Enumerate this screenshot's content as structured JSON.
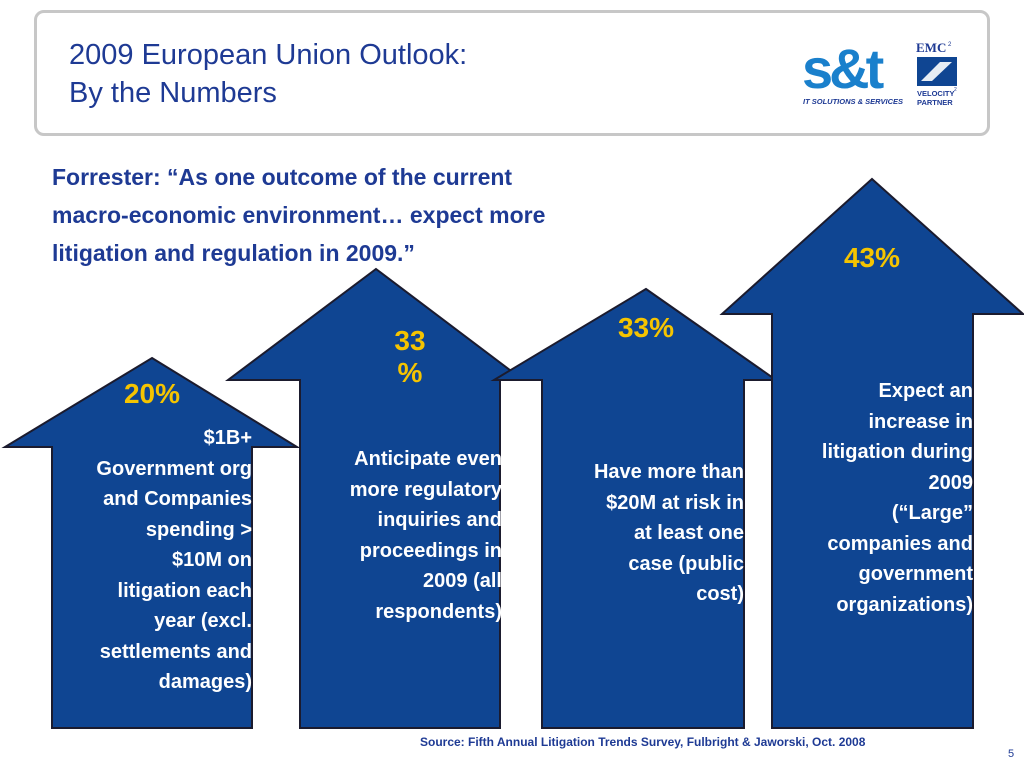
{
  "slide": {
    "title_line1": "2009 European Union Outlook:",
    "title_line2": "By the Numbers",
    "quote_lines": [
      "Forrester:  “As one outcome of the current",
      "macro-economic environment… expect more",
      "litigation and regulation in 2009.”"
    ],
    "arrows": [
      {
        "percent_lines": [
          "20%"
        ],
        "description_lines": [
          "$1B+",
          "Government org",
          "and Companies",
          "spending >",
          "$10M on",
          "litigation each",
          "year (excl.",
          "settlements and",
          "damages)"
        ]
      },
      {
        "percent_lines": [
          "33",
          "%"
        ],
        "description_lines": [
          "Anticipate  even",
          "more regulatory",
          "inquiries and",
          "proceedings in",
          "2009 (all",
          "respondents)"
        ]
      },
      {
        "percent_lines": [
          "33%"
        ],
        "description_lines": [
          "Have more than",
          "$20M at risk in",
          "at least one",
          "case (public",
          "cost)"
        ]
      },
      {
        "percent_lines": [
          "43%"
        ],
        "description_lines": [
          "Expect an",
          "increase in",
          "litigation during",
          "2009",
          "(“Large”",
          "companies and",
          "government",
          "organizations)"
        ]
      }
    ],
    "source": "Source: Fifth Annual Litigation Trends Survey, Fulbright & Jaworski, Oct. 2008",
    "page_number": "5",
    "arrow_fill": "#0f4592",
    "highlight_color": "#f5c400"
  },
  "logos": {
    "st_letters": "s&t",
    "st_tagline": "IT SOLUTIONS & SERVICES",
    "emc_text": "EMC",
    "emc_sup": "2",
    "velocity_text": "VELOCITY",
    "velocity_sup": "2",
    "partner_text": "PARTNER"
  }
}
